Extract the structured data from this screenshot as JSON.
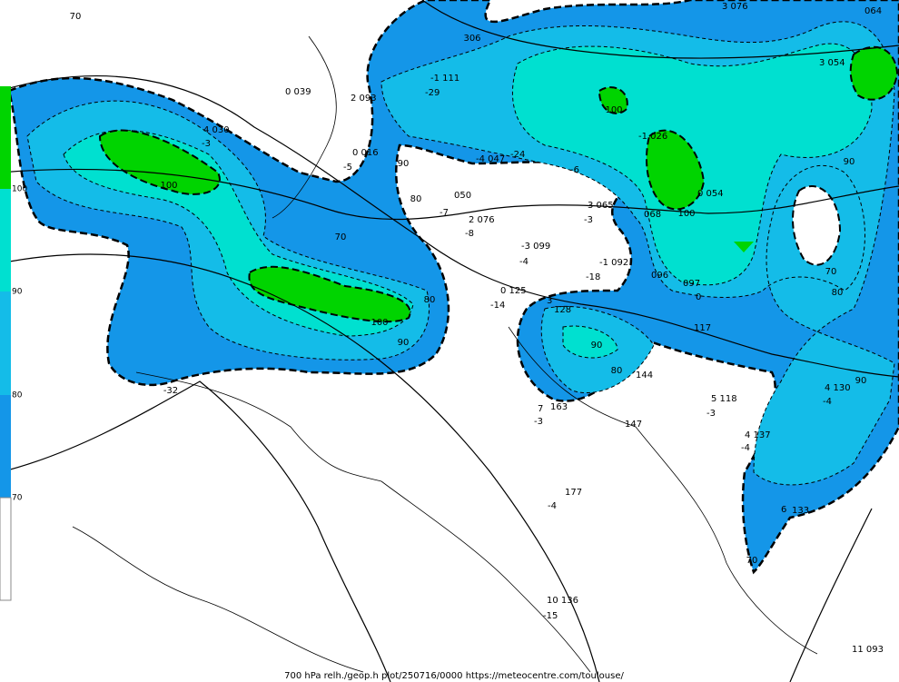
{
  "footer": "700 hPa relh./geop.h plot/250716/0000 https://meteocentre.com/toulouse/",
  "colorbar": {
    "labels": [
      "100",
      "90",
      "80",
      "70"
    ]
  },
  "contour_labels": [
    "70",
    "306",
    "100",
    "70",
    "90",
    "80",
    "100",
    "90",
    "100",
    "70",
    "80",
    "80",
    "100",
    "90",
    "90",
    "80",
    "90",
    "70",
    "-32"
  ],
  "stations": [
    "-1 111",
    "-29",
    "0 039",
    "2 093",
    "4 030",
    "-3",
    "0 016",
    "-5",
    "-4 047",
    "-24",
    "-6",
    "-1 026",
    "0 054",
    "3 065",
    "-3",
    "068",
    "2 076",
    "-8",
    "-7",
    "050",
    "-3 099",
    "-4",
    "-1 092",
    "-18",
    "096",
    "0 125",
    "-14",
    "097",
    "0",
    "3",
    "128",
    "117",
    "144",
    "5 118",
    "-3",
    "4 130",
    "-4",
    "7",
    "-3",
    "163",
    "147",
    "4 137",
    "-4",
    "177",
    "-4",
    "6",
    "133",
    "10 136",
    "-15",
    "11 093",
    "3 076",
    "3 054",
    "064"
  ]
}
